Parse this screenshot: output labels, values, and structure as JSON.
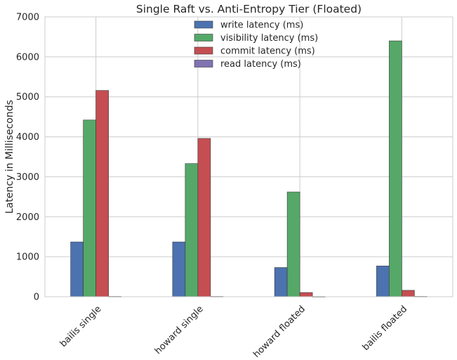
{
  "chart_data": {
    "type": "bar",
    "title": "Single Raft vs. Anti-Entropy Tier (Floated)",
    "xlabel": "",
    "ylabel": "Latency in Milliseconds",
    "ylim": [
      0,
      7000
    ],
    "yticks": [
      0,
      1000,
      2000,
      3000,
      4000,
      5000,
      6000,
      7000
    ],
    "categories": [
      "bailis single",
      "howard single",
      "howard floated",
      "bailis floated"
    ],
    "series": [
      {
        "name": "write latency (ms)",
        "color": "#4c72b0",
        "values": [
          1370,
          1370,
          730,
          770
        ]
      },
      {
        "name": "visibility latency (ms)",
        "color": "#55a868",
        "values": [
          4420,
          3330,
          2620,
          6400
        ]
      },
      {
        "name": "commit latency (ms)",
        "color": "#c44e52",
        "values": [
          5160,
          3960,
          105,
          160
        ]
      },
      {
        "name": "read latency (ms)",
        "color": "#8172b2",
        "values": [
          8,
          8,
          5,
          8
        ]
      }
    ],
    "grid": true,
    "legend_position": "top-center"
  }
}
